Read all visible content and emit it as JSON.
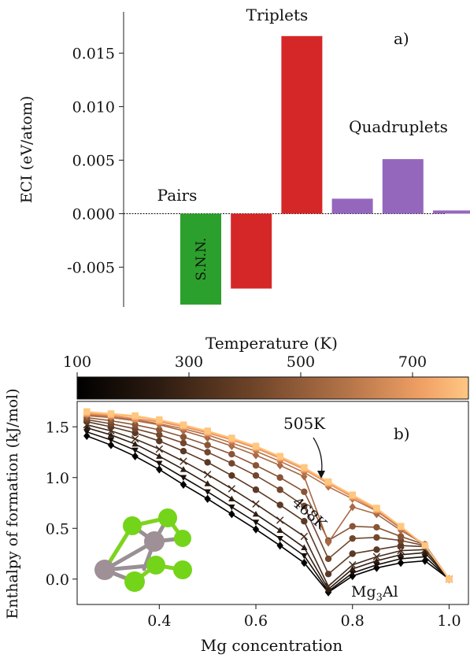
{
  "chart_data": [
    {
      "panel_label": "a)",
      "type": "bar",
      "ylabel": "ECI (eV/atom)",
      "ylim": [
        -0.0085,
        0.0185
      ],
      "yticks": [
        "-0.005",
        "0.000",
        "0.005",
        "0.010",
        "0.015"
      ],
      "bars": [
        {
          "value": -0.0085,
          "group": "Pairs",
          "color": "#2ca02c"
        },
        {
          "value": -0.007,
          "group": "Triplets",
          "color": "#d62728"
        },
        {
          "value": 0.0166,
          "group": "Triplets",
          "color": "#d62728"
        },
        {
          "value": 0.0014,
          "group": "Quadruplets",
          "color": "#9467bd"
        },
        {
          "value": 0.0051,
          "group": "Quadruplets",
          "color": "#9467bd"
        },
        {
          "value": 0.0003,
          "group": "Quadruplets",
          "color": "#9467bd"
        }
      ],
      "bar_label": "S.N.N.",
      "group_labels": [
        {
          "text": "Pairs",
          "color": "#2ca02c"
        },
        {
          "text": "Triplets",
          "color": "#d62728"
        },
        {
          "text": "Quadruplets",
          "color": "#9467bd"
        }
      ]
    },
    {
      "panel_label": "b)",
      "type": "line",
      "xlabel": "Mg concentration",
      "ylabel": "Enthalpy of formation (kJ/mol)",
      "xlim": [
        0.23,
        1.04
      ],
      "ylim": [
        -0.25,
        1.75
      ],
      "xticks": [
        "0.4",
        "0.6",
        "0.8",
        "1.0"
      ],
      "yticks": [
        "0.0",
        "0.5",
        "1.0",
        "1.5"
      ],
      "colorbar": {
        "label": "Temperature (K)",
        "ticks": [
          "100",
          "300",
          "500",
          "700"
        ],
        "range": [
          100,
          800
        ]
      },
      "annotations": [
        "505K",
        "468K",
        "Mg3Al"
      ],
      "x": [
        0.25,
        0.3,
        0.35,
        0.4,
        0.45,
        0.5,
        0.55,
        0.6,
        0.65,
        0.7,
        0.75,
        0.8,
        0.85,
        0.9,
        0.95,
        1.0
      ],
      "series": [
        {
          "temperature": 100,
          "marker": "diamond",
          "values": [
            1.41,
            1.32,
            1.21,
            1.08,
            0.93,
            0.79,
            0.64,
            0.49,
            0.33,
            0.16,
            -0.13,
            0.03,
            0.11,
            0.16,
            0.18,
            0.0
          ]
        },
        {
          "temperature": 150,
          "marker": "triangle-down",
          "values": [
            1.45,
            1.37,
            1.27,
            1.14,
            1.0,
            0.86,
            0.71,
            0.56,
            0.4,
            0.23,
            -0.12,
            0.06,
            0.14,
            0.2,
            0.22,
            0.0
          ]
        },
        {
          "temperature": 200,
          "marker": "triangle-up",
          "values": [
            1.49,
            1.42,
            1.33,
            1.21,
            1.08,
            0.94,
            0.79,
            0.64,
            0.48,
            0.31,
            -0.1,
            0.1,
            0.18,
            0.24,
            0.26,
            0.0
          ]
        },
        {
          "temperature": 250,
          "marker": "x",
          "values": [
            1.52,
            1.46,
            1.38,
            1.28,
            1.16,
            1.03,
            0.89,
            0.74,
            0.58,
            0.42,
            -0.07,
            0.14,
            0.22,
            0.28,
            0.29,
            0.0
          ]
        },
        {
          "temperature": 300,
          "marker": "circle",
          "values": [
            1.55,
            1.5,
            1.44,
            1.36,
            1.26,
            1.15,
            1.02,
            0.88,
            0.73,
            0.57,
            0.05,
            0.25,
            0.29,
            0.33,
            0.32,
            0.0
          ]
        },
        {
          "temperature": 350,
          "marker": "circle",
          "values": [
            1.57,
            1.53,
            1.48,
            1.42,
            1.34,
            1.25,
            1.14,
            1.02,
            0.88,
            0.72,
            0.2,
            0.4,
            0.41,
            0.38,
            0.33,
            0.0
          ]
        },
        {
          "temperature": 400,
          "marker": "circle",
          "values": [
            1.59,
            1.56,
            1.52,
            1.47,
            1.4,
            1.32,
            1.23,
            1.12,
            1.0,
            0.86,
            0.38,
            0.52,
            0.51,
            0.42,
            0.34,
            0.0
          ]
        },
        {
          "temperature": 468,
          "marker": "diamond",
          "values": [
            1.61,
            1.59,
            1.56,
            1.52,
            1.46,
            1.39,
            1.31,
            1.22,
            1.12,
            1.01,
            0.36,
            0.71,
            0.64,
            0.48,
            0.34,
            0.0
          ]
        },
        {
          "temperature": 505,
          "marker": "diamond",
          "values": [
            1.62,
            1.6,
            1.57,
            1.53,
            1.48,
            1.42,
            1.34,
            1.26,
            1.16,
            1.05,
            0.91,
            0.79,
            0.67,
            0.5,
            0.34,
            0.0
          ]
        },
        {
          "temperature": 600,
          "marker": "star",
          "values": [
            1.63,
            1.61,
            1.58,
            1.55,
            1.5,
            1.44,
            1.37,
            1.29,
            1.19,
            1.08,
            0.94,
            0.81,
            0.68,
            0.51,
            0.33,
            0.0
          ]
        },
        {
          "temperature": 700,
          "marker": "star",
          "values": [
            1.64,
            1.62,
            1.6,
            1.56,
            1.51,
            1.45,
            1.38,
            1.3,
            1.2,
            1.09,
            0.95,
            0.82,
            0.69,
            0.52,
            0.33,
            0.0
          ]
        },
        {
          "temperature": 800,
          "marker": "star",
          "values": [
            1.65,
            1.63,
            1.61,
            1.57,
            1.52,
            1.46,
            1.39,
            1.31,
            1.21,
            1.1,
            0.96,
            0.83,
            0.7,
            0.52,
            0.33,
            0.0
          ]
        }
      ]
    }
  ]
}
